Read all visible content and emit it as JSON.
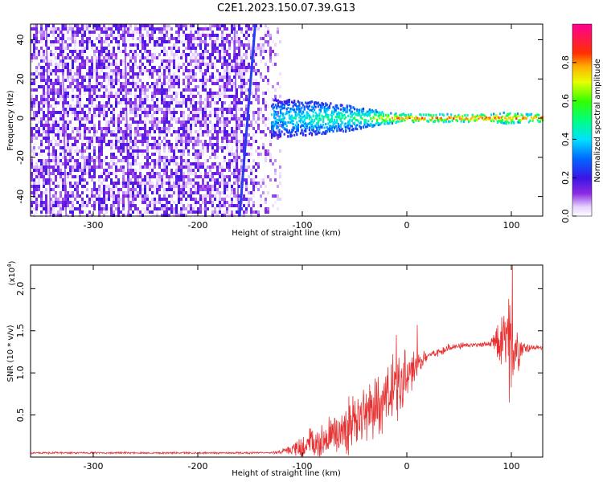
{
  "title": "C2E1.2023.150.07.39.G13",
  "chart_data": [
    {
      "type": "heatmap",
      "name": "spectrogram",
      "xlabel": "Height of straight line (km)",
      "ylabel": "Frequency (Hz)",
      "xlim": [
        -360,
        130
      ],
      "ylim": [
        -50,
        48
      ],
      "xticks": [
        "-300",
        "-200",
        "-100",
        "0",
        "100"
      ],
      "yticks": [
        "40",
        "20",
        "0",
        "-20",
        "-40"
      ],
      "ytick_values": [
        40,
        20,
        0,
        -20,
        -40
      ],
      "xtick_values": [
        -300,
        -200,
        -100,
        0,
        100
      ],
      "noise_region_x": [
        -360,
        -120
      ],
      "noise_amplitude": 0.1,
      "inclined_line": {
        "x": [
          -160,
          -145
        ],
        "y": [
          -50,
          48
        ],
        "amplitude": 0.2
      },
      "signal_band": {
        "x": [
          -130,
          -100,
          -80,
          -60,
          -40,
          -20,
          0,
          40,
          80,
          95,
          110,
          130
        ],
        "width": [
          10,
          9,
          8,
          7,
          5,
          3,
          2,
          2,
          2,
          3,
          2,
          2
        ],
        "amplitude": [
          0.4,
          0.45,
          0.5,
          0.5,
          0.55,
          0.75,
          0.85,
          0.85,
          0.85,
          0.8,
          0.85,
          0.85
        ]
      },
      "colorbar": {
        "label": "Normalized spectral amplitude",
        "ticks": [
          "0.0",
          "0.2",
          "0.4",
          "0.6",
          "0.8"
        ],
        "tick_values": [
          0.0,
          0.2,
          0.4,
          0.6,
          0.8
        ],
        "range": [
          0,
          1
        ]
      }
    },
    {
      "type": "line",
      "name": "snr",
      "xlabel": "Height of straight line (km)",
      "ylabel": "SNR (10 * v/v)",
      "scale_label": "(x10",
      "scale_exp": "4",
      "scale_close": ")",
      "xlim": [
        -360,
        130
      ],
      "ylim": [
        0,
        2.28
      ],
      "xticks": [
        "-300",
        "-200",
        "-100",
        "0",
        "100"
      ],
      "xtick_values": [
        -300,
        -200,
        -100,
        0,
        100
      ],
      "yticks": [
        "0.5",
        "1.0",
        "1.5",
        "2.0"
      ],
      "ytick_values": [
        0.5,
        1.0,
        1.5,
        2.0
      ],
      "color": "#e83232",
      "envelope": {
        "x": [
          -360,
          -130,
          -110,
          -90,
          -70,
          -50,
          -30,
          -10,
          0,
          10,
          20,
          40,
          60,
          80,
          90,
          100,
          110,
          120,
          130
        ],
        "y": [
          0.05,
          0.05,
          0.08,
          0.15,
          0.25,
          0.4,
          0.6,
          0.8,
          0.95,
          1.1,
          1.2,
          1.3,
          1.33,
          1.34,
          1.35,
          1.35,
          1.3,
          1.3,
          1.3
        ],
        "amp": [
          0.01,
          0.01,
          0.05,
          0.2,
          0.25,
          0.3,
          0.35,
          0.4,
          0.3,
          0.15,
          0.06,
          0.04,
          0.03,
          0.03,
          0.3,
          0.6,
          0.1,
          0.03,
          0.02
        ]
      },
      "peaks": [
        {
          "x": 101,
          "y": 2.28
        },
        {
          "x": 98,
          "y": 0.65
        },
        {
          "x": 10,
          "y": 1.57
        },
        {
          "x": -10,
          "y": 1.45
        }
      ]
    }
  ]
}
